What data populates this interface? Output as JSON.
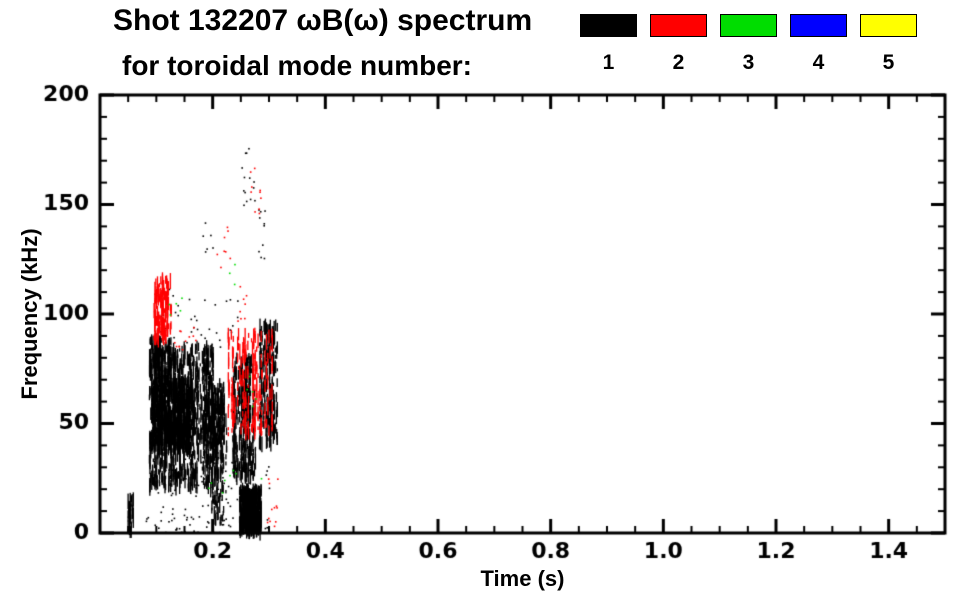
{
  "title": {
    "line1": "Shot 132207 ωB(ω) spectrum",
    "line2": "for toroidal mode number:"
  },
  "legend": {
    "items": [
      {
        "label": "1",
        "color": "#000000"
      },
      {
        "label": "2",
        "color": "#ff0000"
      },
      {
        "label": "3",
        "color": "#00dd00"
      },
      {
        "label": "4",
        "color": "#0000ff"
      },
      {
        "label": "5",
        "color": "#ffff00"
      }
    ]
  },
  "chart_data": {
    "type": "scatter",
    "title": "Shot 132207 ωB(ω) spectrum for toroidal mode number",
    "xlabel": "Time (s)",
    "ylabel": "Frequency (kHz)",
    "xlim": [
      0,
      1.5
    ],
    "ylim": [
      0,
      200
    ],
    "xticks": [
      0.2,
      0.4,
      0.6,
      0.8,
      1.0,
      1.2,
      1.4
    ],
    "xtick_labels": [
      "0.2",
      "0.4",
      "0.6",
      "0.8",
      "1.0",
      "1.2",
      "1.4"
    ],
    "yticks": [
      0,
      50,
      100,
      150,
      200
    ],
    "ytick_labels": [
      "0",
      "50",
      "100",
      "150",
      "200"
    ],
    "x_minor_step": 0.05,
    "y_minor_step": 10,
    "grid": false,
    "legend_position": "top-right",
    "frame_color": "#000000",
    "series": [
      {
        "name": "mode 1",
        "color": "#000000",
        "clusters": [
          {
            "t": [
              0.048,
              0.058
            ],
            "f": [
              0,
              16
            ],
            "n": 10,
            "kind": "streaks"
          },
          {
            "t": [
              0.08,
              0.3
            ],
            "f": [
              0,
              8
            ],
            "n": 50,
            "kind": "dots"
          },
          {
            "t": [
              0.085,
              0.2
            ],
            "f": [
              20,
              85
            ],
            "n": 230,
            "kind": "streaks"
          },
          {
            "t": [
              0.09,
              0.16
            ],
            "f": [
              38,
              70
            ],
            "n": 150,
            "kind": "streaks"
          },
          {
            "t": [
              0.085,
              0.125
            ],
            "f": [
              72,
              88
            ],
            "n": 40,
            "kind": "streaks"
          },
          {
            "t": [
              0.13,
              0.22
            ],
            "f": [
              40,
              62
            ],
            "n": 80,
            "kind": "streaks"
          },
          {
            "t": [
              0.195,
              0.225
            ],
            "f": [
              5,
              68
            ],
            "n": 45,
            "kind": "streaks"
          },
          {
            "t": [
              0.245,
              0.285
            ],
            "f": [
              0,
              20
            ],
            "n": 120,
            "kind": "streaks"
          },
          {
            "t": [
              0.235,
              0.275
            ],
            "f": [
              25,
              80
            ],
            "n": 90,
            "kind": "streaks"
          },
          {
            "t": [
              0.28,
              0.315
            ],
            "f": [
              40,
              95
            ],
            "n": 60,
            "kind": "streaks"
          },
          {
            "t": [
              0.25,
              0.275
            ],
            "f": [
              148,
              178
            ],
            "n": 14,
            "kind": "dots"
          },
          {
            "t": [
              0.28,
              0.305
            ],
            "f": [
              125,
              148
            ],
            "n": 10,
            "kind": "dots"
          },
          {
            "t": [
              0.17,
              0.2
            ],
            "f": [
              128,
              142
            ],
            "n": 6,
            "kind": "dots"
          },
          {
            "t": [
              0.15,
              0.25
            ],
            "f": [
              85,
              110
            ],
            "n": 25,
            "kind": "dots"
          },
          {
            "t": [
              0.09,
              0.14
            ],
            "f": [
              88,
              112
            ],
            "n": 15,
            "kind": "dots"
          },
          {
            "t": [
              0.1,
              0.3
            ],
            "f": [
              8,
              35
            ],
            "n": 70,
            "kind": "dots"
          }
        ]
      },
      {
        "name": "mode 2",
        "color": "#ff0000",
        "clusters": [
          {
            "t": [
              0.093,
              0.125
            ],
            "f": [
              88,
              116
            ],
            "n": 45,
            "kind": "streaks"
          },
          {
            "t": [
              0.13,
              0.17
            ],
            "f": [
              82,
              95
            ],
            "n": 12,
            "kind": "dots"
          },
          {
            "t": [
              0.225,
              0.305
            ],
            "f": [
              45,
              92
            ],
            "n": 55,
            "kind": "streaks"
          },
          {
            "t": [
              0.26,
              0.285
            ],
            "f": [
              145,
              170
            ],
            "n": 10,
            "kind": "dots"
          },
          {
            "t": [
              0.205,
              0.23
            ],
            "f": [
              118,
              142
            ],
            "n": 8,
            "kind": "dots"
          },
          {
            "t": [
              0.29,
              0.315
            ],
            "f": [
              0,
              25
            ],
            "n": 12,
            "kind": "dots"
          },
          {
            "t": [
              0.24,
              0.26
            ],
            "f": [
              95,
              115
            ],
            "n": 8,
            "kind": "dots"
          }
        ]
      },
      {
        "name": "mode 3",
        "color": "#00dd00",
        "clusters": [
          {
            "t": [
              0.115,
              0.145
            ],
            "f": [
              95,
              108
            ],
            "n": 5,
            "kind": "dots"
          },
          {
            "t": [
              0.19,
              0.29
            ],
            "f": [
              18,
              32
            ],
            "n": 8,
            "kind": "dots"
          },
          {
            "t": [
              0.255,
              0.285
            ],
            "f": [
              58,
              72
            ],
            "n": 5,
            "kind": "dots"
          },
          {
            "t": [
              0.22,
              0.24
            ],
            "f": [
              100,
              125
            ],
            "n": 3,
            "kind": "dots"
          }
        ]
      },
      {
        "name": "mode 4",
        "color": "#0000ff",
        "clusters": []
      },
      {
        "name": "mode 5",
        "color": "#ffff00",
        "clusters": []
      }
    ]
  }
}
